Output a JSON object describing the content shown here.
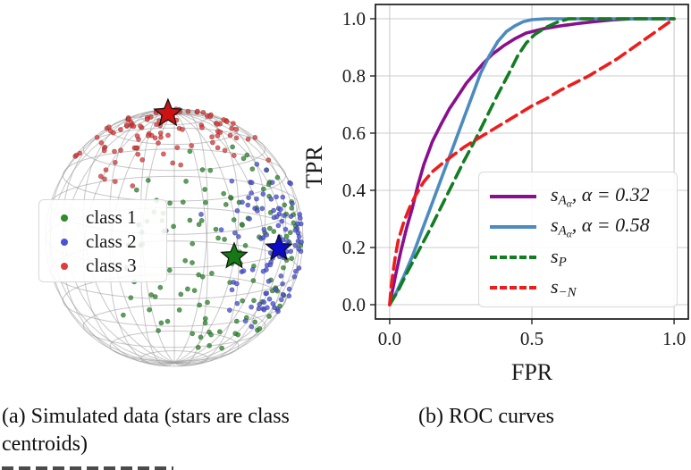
{
  "captions": {
    "a": "(a) Simulated data (stars are class centroids)",
    "b": "(b) ROC curves"
  },
  "sphere_legend": {
    "items": [
      {
        "label": "class 1",
        "color": "#2e8b2e"
      },
      {
        "label": "class 2",
        "color": "#4a52d8"
      },
      {
        "label": "class 3",
        "color": "#e03c3c"
      }
    ]
  },
  "chart_data": [
    {
      "type": "scatter",
      "title": "Simulated data on unit sphere (stars are class centroids)",
      "legend_position": "center left",
      "wireframe": {
        "color": "#999999",
        "lat_step_deg": 15,
        "lon_step_deg": 15,
        "elevation_deg": 13.5
      },
      "marker_radius": 2.6,
      "classes": [
        {
          "name": "class 1",
          "color": "#2e8b2e",
          "star_color": "#157a15",
          "star_size": 15,
          "count": 130,
          "sigma": 0.58,
          "centroid_view_dir": [
            0.465,
            -0.146,
            0.873
          ],
          "seed": 101
        },
        {
          "name": "class 2",
          "color": "#4a52d8",
          "star_color": "#0a0ac8",
          "star_size": 15,
          "count": 105,
          "sigma": 0.34,
          "centroid_view_dir": [
            0.8125,
            -0.083,
            0.577
          ],
          "seed": 207
        },
        {
          "name": "class 3",
          "color": "#e03c3c",
          "star_color": "#cc1212",
          "star_size": 16,
          "count": 105,
          "sigma": 0.42,
          "centroid_view_dir": [
            -0.049,
            0.965,
            0.258
          ],
          "seed": 313
        }
      ]
    },
    {
      "type": "line",
      "title": "ROC curves",
      "xlabel": "FPR",
      "ylabel": "TPR",
      "xlim": [
        0.0,
        1.0
      ],
      "ylim": [
        0.0,
        1.0
      ],
      "xticks": [
        0.0,
        0.5,
        1.0
      ],
      "yticks": [
        0.0,
        0.2,
        0.4,
        0.6,
        0.8,
        1.0
      ],
      "grid": true,
      "legend_position": "lower right",
      "series": [
        {
          "name": "s_A_alpha, alpha = 0.32",
          "color": "#8a0f8f",
          "dash": "solid",
          "label_segments": [
            [
              "s",
              "i"
            ],
            [
              "A",
              "sub"
            ],
            [
              "α",
              "ssub"
            ],
            [
              ", α = 0.32",
              "i"
            ]
          ],
          "points": [
            [
              0,
              0
            ],
            [
              0.01,
              0.05
            ],
            [
              0.02,
              0.1
            ],
            [
              0.04,
              0.19
            ],
            [
              0.06,
              0.27
            ],
            [
              0.08,
              0.34
            ],
            [
              0.1,
              0.42
            ],
            [
              0.12,
              0.49
            ],
            [
              0.15,
              0.57
            ],
            [
              0.18,
              0.63
            ],
            [
              0.21,
              0.685
            ],
            [
              0.24,
              0.73
            ],
            [
              0.27,
              0.775
            ],
            [
              0.3,
              0.81
            ],
            [
              0.33,
              0.845
            ],
            [
              0.36,
              0.875
            ],
            [
              0.4,
              0.905
            ],
            [
              0.44,
              0.93
            ],
            [
              0.48,
              0.95
            ],
            [
              0.54,
              0.965
            ],
            [
              0.6,
              0.975
            ],
            [
              0.66,
              0.983
            ],
            [
              0.72,
              0.99
            ],
            [
              0.78,
              0.996
            ],
            [
              0.85,
              1.0
            ],
            [
              1.0,
              1.0
            ]
          ]
        },
        {
          "name": "s_A_alpha, alpha = 0.58",
          "color": "#4c8bc0",
          "dash": "solid",
          "label_segments": [
            [
              "s",
              "i"
            ],
            [
              "A",
              "sub"
            ],
            [
              "α",
              "ssub"
            ],
            [
              ", α = 0.58",
              "i"
            ]
          ],
          "points": [
            [
              0,
              0
            ],
            [
              0.02,
              0.035
            ],
            [
              0.05,
              0.1
            ],
            [
              0.08,
              0.17
            ],
            [
              0.11,
              0.25
            ],
            [
              0.14,
              0.33
            ],
            [
              0.17,
              0.41
            ],
            [
              0.2,
              0.49
            ],
            [
              0.23,
              0.57
            ],
            [
              0.26,
              0.65
            ],
            [
              0.29,
              0.73
            ],
            [
              0.32,
              0.81
            ],
            [
              0.35,
              0.87
            ],
            [
              0.38,
              0.92
            ],
            [
              0.41,
              0.955
            ],
            [
              0.44,
              0.975
            ],
            [
              0.47,
              0.99
            ],
            [
              0.5,
              0.997
            ],
            [
              0.55,
              1.0
            ],
            [
              1.0,
              1.0
            ]
          ]
        },
        {
          "name": "s_P",
          "color": "#127d22",
          "dash": "dashed",
          "label_segments": [
            [
              "s",
              "i"
            ],
            [
              "P",
              "sub"
            ]
          ],
          "points": [
            [
              0,
              0
            ],
            [
              0.03,
              0.05
            ],
            [
              0.06,
              0.11
            ],
            [
              0.1,
              0.185
            ],
            [
              0.14,
              0.26
            ],
            [
              0.18,
              0.34
            ],
            [
              0.22,
              0.42
            ],
            [
              0.26,
              0.5
            ],
            [
              0.3,
              0.575
            ],
            [
              0.34,
              0.655
            ],
            [
              0.38,
              0.735
            ],
            [
              0.42,
              0.81
            ],
            [
              0.45,
              0.87
            ],
            [
              0.48,
              0.915
            ],
            [
              0.51,
              0.945
            ],
            [
              0.55,
              0.97
            ],
            [
              0.59,
              0.988
            ],
            [
              0.63,
              1.0
            ],
            [
              1.0,
              1.0
            ]
          ]
        },
        {
          "name": "s_-N",
          "color": "#ee1c1c",
          "dash": "dashed",
          "label_segments": [
            [
              "s",
              "i"
            ],
            [
              "−N",
              "sub"
            ]
          ],
          "points": [
            [
              0,
              0
            ],
            [
              0.005,
              0.06
            ],
            [
              0.01,
              0.1
            ],
            [
              0.02,
              0.17
            ],
            [
              0.03,
              0.225
            ],
            [
              0.05,
              0.29
            ],
            [
              0.07,
              0.34
            ],
            [
              0.09,
              0.38
            ],
            [
              0.12,
              0.43
            ],
            [
              0.15,
              0.465
            ],
            [
              0.18,
              0.49
            ],
            [
              0.22,
              0.52
            ],
            [
              0.26,
              0.55
            ],
            [
              0.3,
              0.575
            ],
            [
              0.35,
              0.605
            ],
            [
              0.4,
              0.635
            ],
            [
              0.45,
              0.665
            ],
            [
              0.5,
              0.695
            ],
            [
              0.55,
              0.72
            ],
            [
              0.6,
              0.75
            ],
            [
              0.65,
              0.775
            ],
            [
              0.7,
              0.8
            ],
            [
              0.75,
              0.83
            ],
            [
              0.8,
              0.86
            ],
            [
              0.85,
              0.895
            ],
            [
              0.9,
              0.93
            ],
            [
              0.95,
              0.965
            ],
            [
              1.0,
              1.0
            ]
          ]
        }
      ]
    }
  ]
}
